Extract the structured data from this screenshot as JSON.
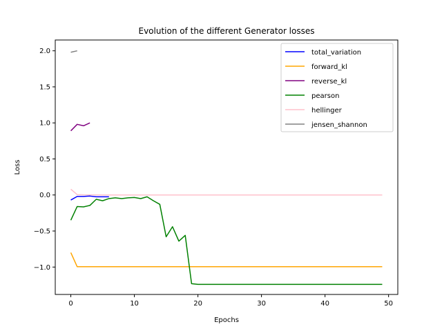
{
  "chart_data": {
    "type": "line",
    "title": "Evolution of the different Generator losses",
    "xlabel": "Epochs",
    "ylabel": "Loss",
    "xlim": [
      -2.45,
      51.45
    ],
    "ylim": [
      -1.38,
      2.15
    ],
    "xticks": [
      0,
      10,
      20,
      30,
      40,
      50
    ],
    "yticks": [
      2.0,
      1.5,
      1.0,
      0.5,
      0.0,
      -0.5,
      -1.0
    ],
    "ytick_labels": [
      "2.0",
      "1.5",
      "1.0",
      "0.5",
      "0.0",
      "−0.5",
      "−1.0"
    ],
    "grid": false,
    "legend_position": "top-right",
    "series": [
      {
        "name": "total_variation",
        "color": "#0000ff",
        "x": [
          0,
          1,
          2,
          3,
          4,
          5,
          6
        ],
        "y": [
          -0.07,
          -0.02,
          -0.02,
          -0.015,
          -0.025,
          -0.025,
          -0.025
        ]
      },
      {
        "name": "forward_kl",
        "color": "#ffa500",
        "x": [
          0,
          1,
          2,
          3,
          4,
          5,
          6,
          7,
          8,
          9,
          10,
          11,
          12,
          13,
          14,
          15,
          16,
          17,
          18,
          19,
          20,
          21,
          22,
          23,
          24,
          25,
          26,
          27,
          28,
          29,
          30,
          31,
          32,
          33,
          34,
          35,
          36,
          37,
          38,
          39,
          40,
          41,
          42,
          43,
          44,
          45,
          46,
          47,
          48,
          49
        ],
        "y": [
          -0.8,
          -0.995,
          -0.995,
          -0.995,
          -0.995,
          -0.995,
          -0.995,
          -0.995,
          -0.995,
          -0.995,
          -0.995,
          -0.995,
          -0.995,
          -0.995,
          -0.995,
          -0.995,
          -0.995,
          -0.995,
          -0.995,
          -0.995,
          -0.995,
          -0.995,
          -0.995,
          -0.995,
          -0.995,
          -0.995,
          -0.995,
          -0.995,
          -0.995,
          -0.995,
          -0.995,
          -0.995,
          -0.995,
          -0.995,
          -0.995,
          -0.995,
          -0.995,
          -0.995,
          -0.995,
          -0.995,
          -0.995,
          -0.995,
          -0.995,
          -0.995,
          -0.995,
          -0.995,
          -0.995,
          -0.995,
          -0.995,
          -0.995
        ]
      },
      {
        "name": "reverse_kl",
        "color": "#800080",
        "x": [
          0,
          1,
          2,
          3
        ],
        "y": [
          0.89,
          0.98,
          0.96,
          1.0
        ]
      },
      {
        "name": "pearson",
        "color": "#008000",
        "x": [
          0,
          1,
          2,
          3,
          4,
          5,
          6,
          7,
          8,
          9,
          10,
          11,
          12,
          13,
          14,
          15,
          16,
          17,
          18,
          19,
          20,
          21,
          22,
          23,
          24,
          25,
          26,
          27,
          28,
          29,
          30,
          31,
          32,
          33,
          34,
          35,
          36,
          37,
          38,
          39,
          40,
          41,
          42,
          43,
          44,
          45,
          46,
          47,
          48,
          49
        ],
        "y": [
          -0.35,
          -0.16,
          -0.165,
          -0.145,
          -0.06,
          -0.08,
          -0.05,
          -0.04,
          -0.05,
          -0.04,
          -0.035,
          -0.05,
          -0.025,
          -0.08,
          -0.13,
          -0.58,
          -0.44,
          -0.64,
          -0.56,
          -1.23,
          -1.24,
          -1.24,
          -1.24,
          -1.24,
          -1.24,
          -1.24,
          -1.24,
          -1.24,
          -1.24,
          -1.24,
          -1.24,
          -1.24,
          -1.24,
          -1.24,
          -1.24,
          -1.24,
          -1.24,
          -1.24,
          -1.24,
          -1.24,
          -1.24,
          -1.24,
          -1.24,
          -1.24,
          -1.24,
          -1.24,
          -1.24,
          -1.24,
          -1.24,
          -1.24
        ]
      },
      {
        "name": "hellinger",
        "color": "#ffc0cb",
        "x": [
          0,
          1,
          2,
          3,
          4,
          5,
          6,
          7,
          8,
          9,
          10,
          11,
          12,
          13,
          14,
          15,
          16,
          17,
          18,
          19,
          20,
          21,
          22,
          23,
          24,
          25,
          26,
          27,
          28,
          29,
          30,
          31,
          32,
          33,
          34,
          35,
          36,
          37,
          38,
          39,
          40,
          41,
          42,
          43,
          44,
          45,
          46,
          47,
          48,
          49
        ],
        "y": [
          0.08,
          0.005,
          0.002,
          0.001,
          0.001,
          0.0005,
          0.0005,
          0.0005,
          0.0005,
          0.0005,
          0.0005,
          0.0005,
          0.0005,
          0.0005,
          0.0005,
          0.0005,
          0.0005,
          0.0005,
          0.0005,
          0.0005,
          0.0005,
          0.0005,
          0.0005,
          0.0005,
          0.0005,
          0.0005,
          0.0005,
          0.0005,
          0.0005,
          0.0005,
          0.0005,
          0.0005,
          0.0005,
          0.0005,
          0.0005,
          0.0005,
          0.0005,
          0.0005,
          0.0005,
          0.0005,
          0.0005,
          0.0005,
          0.0005,
          0.0005,
          0.0005,
          0.0005,
          0.0005,
          0.0005,
          0.0005,
          0.0005
        ]
      },
      {
        "name": "jensen_shannon",
        "color": "#808080",
        "x": [
          0,
          1
        ],
        "y": [
          1.98,
          2.0
        ]
      }
    ]
  }
}
